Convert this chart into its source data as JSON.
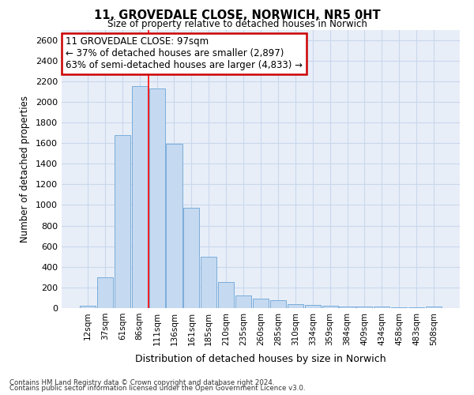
{
  "title1": "11, GROVEDALE CLOSE, NORWICH, NR5 0HT",
  "title2": "Size of property relative to detached houses in Norwich",
  "xlabel": "Distribution of detached houses by size in Norwich",
  "ylabel": "Number of detached properties",
  "categories": [
    "12sqm",
    "37sqm",
    "61sqm",
    "86sqm",
    "111sqm",
    "136sqm",
    "161sqm",
    "185sqm",
    "210sqm",
    "235sqm",
    "260sqm",
    "285sqm",
    "310sqm",
    "334sqm",
    "359sqm",
    "384sqm",
    "409sqm",
    "434sqm",
    "458sqm",
    "483sqm",
    "508sqm"
  ],
  "values": [
    20,
    300,
    1680,
    2150,
    2130,
    1590,
    970,
    500,
    250,
    120,
    95,
    80,
    40,
    30,
    22,
    18,
    15,
    12,
    10,
    10,
    15
  ],
  "bar_color": "#c5d9f0",
  "bar_edgecolor": "#7aaddb",
  "grid_color": "#c8d8ec",
  "background_color": "#e8eef8",
  "red_line_x": 3.5,
  "annotation_text": "11 GROVEDALE CLOSE: 97sqm\n← 37% of detached houses are smaller (2,897)\n63% of semi-detached houses are larger (4,833) →",
  "annotation_box_color": "#ffffff",
  "annotation_box_edgecolor": "#cc0000",
  "footnote1": "Contains HM Land Registry data © Crown copyright and database right 2024.",
  "footnote2": "Contains public sector information licensed under the Open Government Licence v3.0.",
  "ylim": [
    0,
    2700
  ],
  "yticks": [
    0,
    200,
    400,
    600,
    800,
    1000,
    1200,
    1400,
    1600,
    1800,
    2000,
    2200,
    2400,
    2600
  ]
}
